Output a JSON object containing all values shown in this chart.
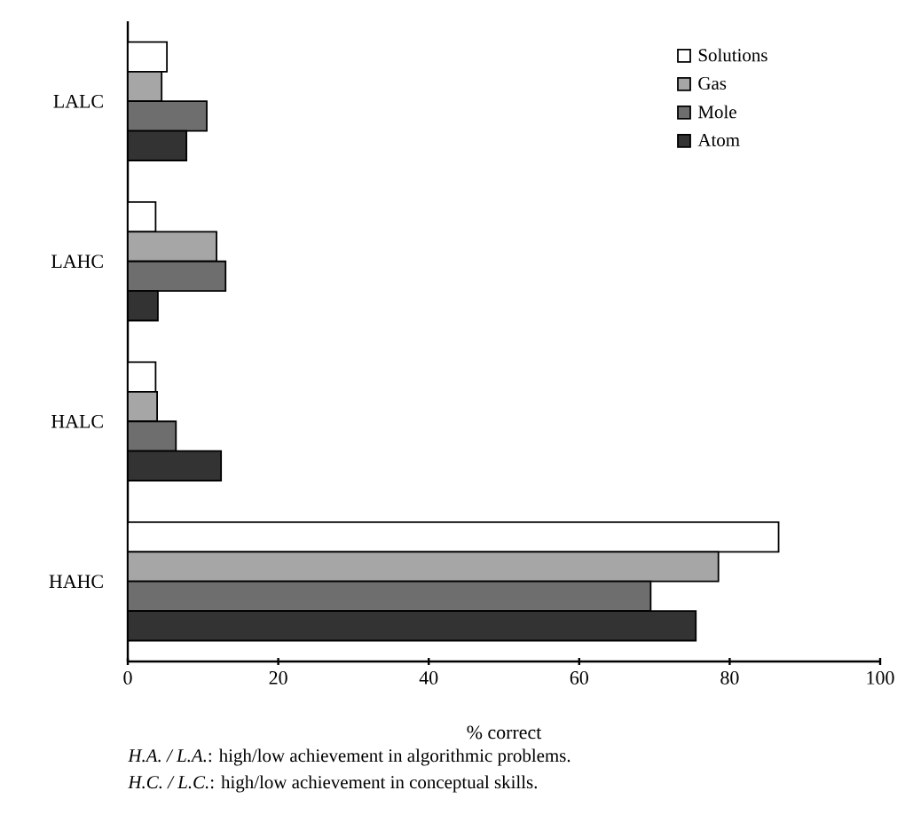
{
  "chart_data": {
    "type": "bar",
    "orientation": "horizontal",
    "xlabel": "% correct",
    "categories": [
      "LALC",
      "LAHC",
      "HALC",
      "HAHC"
    ],
    "series": [
      {
        "name": "Solutions",
        "color": "#ffffff",
        "values": [
          5.2,
          3.7,
          3.7,
          86.5
        ]
      },
      {
        "name": "Gas",
        "color": "#a6a6a6",
        "values": [
          4.5,
          11.8,
          3.9,
          78.5
        ]
      },
      {
        "name": "Mole",
        "color": "#6e6e6e",
        "values": [
          10.5,
          13,
          6.4,
          69.5
        ]
      },
      {
        "name": "Atom",
        "color": "#333333",
        "values": [
          7.8,
          4,
          12.4,
          75.5
        ]
      }
    ],
    "xlim": [
      0,
      100
    ],
    "xticks": [
      0,
      20,
      40,
      60,
      80,
      100
    ],
    "grid": false,
    "legend": "top right",
    "annotations": [
      "*H.A. / L.A.*: high/low achievement in algorithmic problems.",
      "*H.C. / L.C.*: high/low achievement in conceptual skills."
    ]
  }
}
